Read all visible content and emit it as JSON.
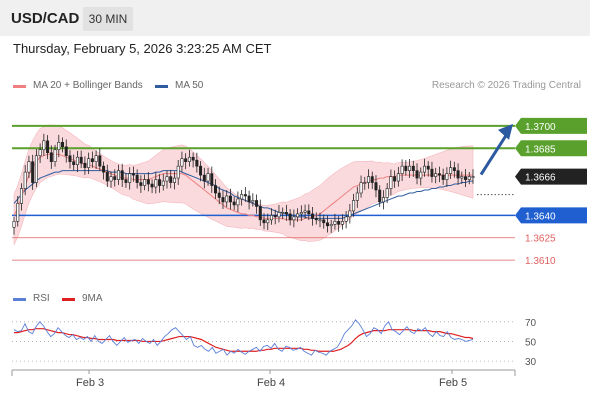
{
  "header": {
    "symbol": "USD/CAD",
    "timeframe": "30 MIN"
  },
  "datetime": "Thursday, February 5, 2026 3:23:25 AM CET",
  "legend": {
    "ma20": {
      "label": "MA 20 + Bollinger Bands",
      "color": "#f08080"
    },
    "ma50": {
      "label": "MA 50",
      "color": "#2f5d9f"
    }
  },
  "credit": "Research © 2026 Trading Central",
  "rsi_legend": {
    "rsi": {
      "label": "RSI",
      "color": "#5b7fd6"
    },
    "ma9": {
      "label": "9MA",
      "color": "#e02020"
    }
  },
  "colors": {
    "resistance": "#5aa02c",
    "pivot": "#1f5fd0",
    "support": "#e06060",
    "bb_fill": "#fadadd",
    "up_arrow": "#2c5aa0",
    "last_price_box": "#222222"
  },
  "chart_data": [
    {
      "type": "candlestick",
      "ylim": [
        1.3598,
        1.3712
      ],
      "x_ticks": [
        "Feb 3",
        "Feb 4",
        "Feb 5"
      ],
      "price_levels": [
        {
          "value": "1.3700",
          "kind": "resistance"
        },
        {
          "value": "1.3685",
          "kind": "resistance"
        },
        {
          "value": "1.3666",
          "kind": "last"
        },
        {
          "value": "1.3640",
          "kind": "pivot"
        },
        {
          "value": "1.3625",
          "kind": "support"
        },
        {
          "value": "1.3610",
          "kind": "support"
        }
      ],
      "closes": [
        1.3636,
        1.3648,
        1.3658,
        1.3669,
        1.3676,
        1.3662,
        1.368,
        1.3684,
        1.369,
        1.3682,
        1.3676,
        1.3684,
        1.3689,
        1.3686,
        1.368,
        1.3676,
        1.3674,
        1.3679,
        1.3675,
        1.3672,
        1.3678,
        1.3676,
        1.368,
        1.3673,
        1.3669,
        1.3663,
        1.3666,
        1.3664,
        1.367,
        1.3664,
        1.3662,
        1.3668,
        1.3667,
        1.3662,
        1.366,
        1.3664,
        1.3661,
        1.3659,
        1.3664,
        1.366,
        1.3663,
        1.3666,
        1.3662,
        1.3665,
        1.3673,
        1.3678,
        1.3676,
        1.3679,
        1.3677,
        1.3673,
        1.3667,
        1.3663,
        1.3668,
        1.366,
        1.3655,
        1.3652,
        1.3649,
        1.3653,
        1.3649,
        1.3647,
        1.3651,
        1.3654,
        1.3653,
        1.3649,
        1.365,
        1.3646,
        1.3637,
        1.3635,
        1.3637,
        1.364,
        1.3639,
        1.3642,
        1.3642,
        1.3641,
        1.3637,
        1.3639,
        1.3641,
        1.3642,
        1.3643,
        1.3641,
        1.3638,
        1.3637,
        1.3637,
        1.3635,
        1.3633,
        1.3634,
        1.3636,
        1.3634,
        1.3636,
        1.3639,
        1.3643,
        1.365,
        1.3655,
        1.3662,
        1.3662,
        1.3666,
        1.3662,
        1.3657,
        1.3649,
        1.3652,
        1.3658,
        1.3666,
        1.3663,
        1.3668,
        1.3673,
        1.367,
        1.3673,
        1.367,
        1.3665,
        1.3669,
        1.3673,
        1.3671,
        1.3666,
        1.3668,
        1.3667,
        1.3664,
        1.3668,
        1.3672,
        1.367,
        1.3665,
        1.3666,
        1.3664,
        1.3666,
        1.3666
      ],
      "ma20": [
        1.364,
        1.3645,
        1.3652,
        1.366,
        1.3667,
        1.3672,
        1.3676,
        1.3679,
        1.368,
        1.3681,
        1.3681,
        1.3681,
        1.3681,
        1.368,
        1.3679,
        1.3678,
        1.3677,
        1.3676,
        1.3675,
        1.3674,
        1.3674,
        1.3673,
        1.3672,
        1.3671,
        1.367,
        1.3669,
        1.3668,
        1.3667,
        1.3666,
        1.3665,
        1.3665,
        1.3665,
        1.3664,
        1.3664,
        1.3664,
        1.3664,
        1.3664,
        1.3665,
        1.3666,
        1.3667,
        1.3668,
        1.3668,
        1.3668,
        1.3668,
        1.3668,
        1.3668,
        1.3667,
        1.3665,
        1.3663,
        1.3661,
        1.3659,
        1.3657,
        1.3655,
        1.3653,
        1.3651,
        1.3649,
        1.3647,
        1.3645,
        1.3644,
        1.3643,
        1.3642,
        1.3641,
        1.3641,
        1.364,
        1.364,
        1.3639,
        1.3639,
        1.3638,
        1.3638,
        1.3638,
        1.3638,
        1.3638,
        1.3638,
        1.3637,
        1.3637,
        1.3637,
        1.3637,
        1.3637,
        1.3638,
        1.3638,
        1.3639,
        1.364,
        1.3641,
        1.3643,
        1.3645,
        1.3647,
        1.3649,
        1.3651,
        1.3653,
        1.3655,
        1.3657,
        1.3659,
        1.366,
        1.3661,
        1.3662,
        1.3663,
        1.3664,
        1.3664,
        1.3665,
        1.3665,
        1.3666,
        1.3666,
        1.3666,
        1.3667,
        1.3667,
        1.3667,
        1.3667,
        1.3667,
        1.3667,
        1.3667,
        1.3667,
        1.3667,
        1.3667,
        1.3667,
        1.3667,
        1.3667,
        1.3667,
        1.3667,
        1.3667,
        1.3667,
        1.3667,
        1.3667,
        1.3667,
        1.3667
      ],
      "ma50": [
        1.3648,
        1.3651,
        1.3654,
        1.3657,
        1.3659,
        1.3661,
        1.3663,
        1.3665,
        1.3666,
        1.3667,
        1.3668,
        1.3669,
        1.3669,
        1.367,
        1.367,
        1.367,
        1.367,
        1.367,
        1.367,
        1.367,
        1.367,
        1.367,
        1.367,
        1.367,
        1.367,
        1.367,
        1.3669,
        1.3669,
        1.3669,
        1.3669,
        1.3668,
        1.3668,
        1.3668,
        1.3668,
        1.3668,
        1.3668,
        1.3668,
        1.3668,
        1.3669,
        1.3669,
        1.367,
        1.367,
        1.367,
        1.367,
        1.367,
        1.3669,
        1.3668,
        1.3667,
        1.3666,
        1.3665,
        1.3664,
        1.3663,
        1.3662,
        1.3661,
        1.366,
        1.3658,
        1.3657,
        1.3656,
        1.3655,
        1.3653,
        1.3652,
        1.3651,
        1.365,
        1.3649,
        1.3648,
        1.3647,
        1.3646,
        1.3645,
        1.3645,
        1.3644,
        1.3643,
        1.3642,
        1.3642,
        1.3641,
        1.364,
        1.364,
        1.3639,
        1.3639,
        1.3639,
        1.3638,
        1.3638,
        1.3638,
        1.3638,
        1.3638,
        1.3638,
        1.3638,
        1.3638,
        1.3638,
        1.3638,
        1.3639,
        1.364,
        1.3641,
        1.3642,
        1.3643,
        1.3644,
        1.3645,
        1.3646,
        1.3647,
        1.3648,
        1.3649,
        1.365,
        1.3651,
        1.3652,
        1.3653,
        1.3653,
        1.3654,
        1.3655,
        1.3655,
        1.3656,
        1.3656,
        1.3657,
        1.3657,
        1.3658,
        1.3658,
        1.3659,
        1.3659,
        1.366,
        1.366,
        1.3661,
        1.3661,
        1.3662,
        1.3662,
        1.3663,
        1.3663
      ],
      "bb_width": 0.0014
    },
    {
      "type": "line",
      "ylim": [
        25,
        80
      ],
      "y_ticks": [
        70,
        50,
        30
      ],
      "rsi": [
        62,
        60,
        61,
        68,
        60,
        58,
        65,
        70,
        66,
        60,
        55,
        58,
        64,
        60,
        56,
        54,
        57,
        52,
        54,
        52,
        55,
        50,
        56,
        50,
        48,
        52,
        56,
        50,
        46,
        50,
        54,
        49,
        51,
        52,
        48,
        53,
        50,
        48,
        52,
        46,
        50,
        55,
        58,
        62,
        64,
        60,
        56,
        52,
        55,
        46,
        44,
        46,
        42,
        40,
        44,
        38,
        40,
        42,
        36,
        40,
        38,
        42,
        39,
        37,
        40,
        42,
        44,
        40,
        45,
        46,
        43,
        48,
        42,
        40,
        45,
        44,
        41,
        42,
        44,
        40,
        38,
        36,
        41,
        39,
        38,
        36,
        40,
        42,
        44,
        50,
        58,
        62,
        66,
        72,
        68,
        62,
        55,
        58,
        64,
        62,
        58,
        66,
        70,
        62,
        60,
        57,
        61,
        65,
        60,
        58,
        63,
        61,
        64,
        58,
        55,
        60,
        56,
        55,
        60,
        54,
        52,
        53,
        52,
        50,
        51,
        52
      ],
      "ma9": [
        59,
        59,
        60,
        61,
        62,
        62,
        63,
        63,
        63,
        62,
        61,
        60,
        59,
        59,
        58,
        57,
        57,
        56,
        55,
        54,
        54,
        53,
        53,
        52,
        52,
        52,
        52,
        52,
        51,
        51,
        51,
        51,
        51,
        51,
        51,
        50,
        50,
        50,
        50,
        50,
        50,
        51,
        52,
        53,
        54,
        55,
        55,
        55,
        55,
        54,
        53,
        52,
        50,
        48,
        46,
        44,
        43,
        42,
        41,
        40,
        40,
        40,
        40,
        40,
        40,
        40,
        40,
        41,
        41,
        42,
        42,
        43,
        43,
        43,
        43,
        43,
        43,
        43,
        43,
        42,
        42,
        41,
        41,
        40,
        40,
        40,
        40,
        40,
        41,
        42,
        44,
        46,
        49,
        53,
        56,
        58,
        59,
        60,
        61,
        61,
        61,
        61,
        62,
        62,
        62,
        62,
        62,
        62,
        62,
        61,
        61,
        61,
        61,
        61,
        60,
        60,
        60,
        59,
        58,
        58,
        57,
        56,
        55,
        54,
        54,
        53
      ]
    }
  ]
}
